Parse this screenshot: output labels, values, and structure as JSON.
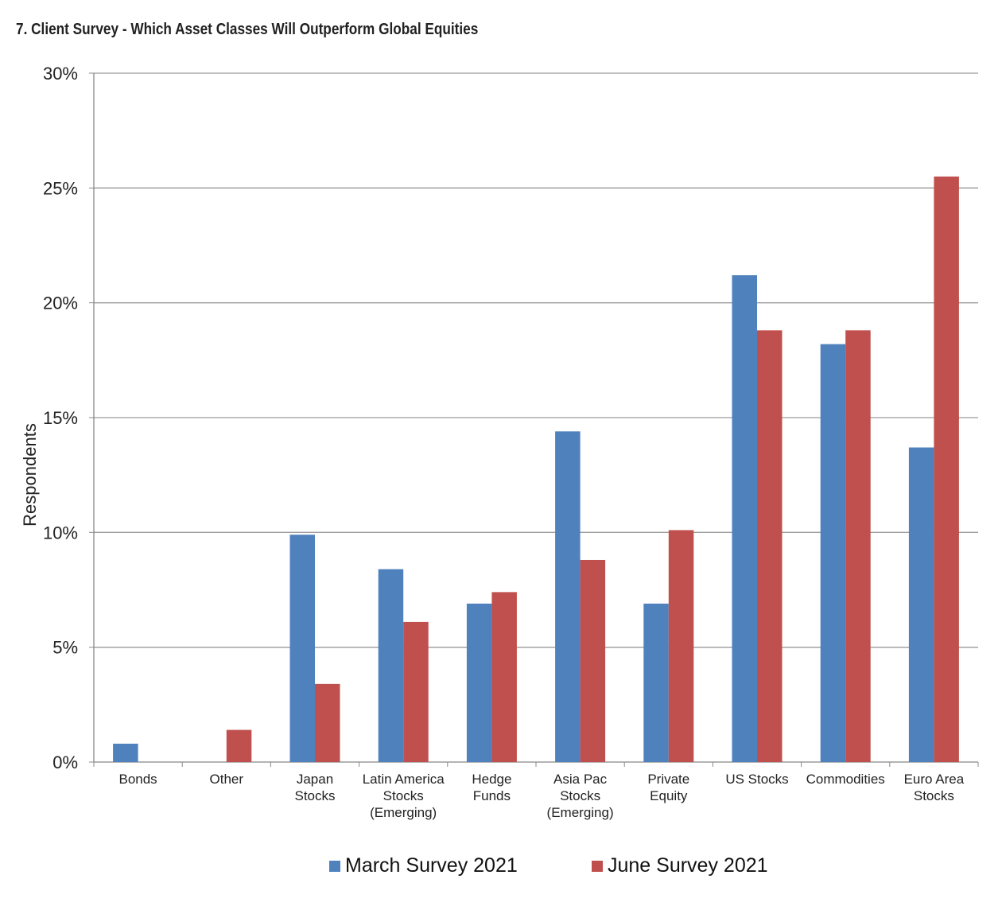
{
  "chart_data": {
    "type": "bar",
    "title": "7. Client Survey - Which Asset Classes Will Outperform Global Equities",
    "ylabel": "Respondents",
    "xlabel": "",
    "ylim": [
      0,
      30
    ],
    "y_ticks": [
      "0%",
      "5%",
      "10%",
      "15%",
      "20%",
      "25%",
      "30%"
    ],
    "y_tick_values": [
      0,
      5,
      10,
      15,
      20,
      25,
      30
    ],
    "grid": true,
    "legend_position": "bottom",
    "categories": [
      [
        "Bonds"
      ],
      [
        "Other"
      ],
      [
        "Japan",
        "Stocks"
      ],
      [
        "Latin America",
        "Stocks",
        "(Emerging)"
      ],
      [
        "Hedge",
        "Funds"
      ],
      [
        "Asia Pac",
        "Stocks",
        "(Emerging)"
      ],
      [
        "Private",
        "Equity"
      ],
      [
        "US Stocks"
      ],
      [
        "Commodities"
      ],
      [
        "Euro Area",
        "Stocks"
      ]
    ],
    "series": [
      {
        "name": "March Survey 2021",
        "color": "#4F81BD",
        "values": [
          0.8,
          0,
          9.9,
          8.4,
          6.9,
          14.4,
          6.9,
          21.2,
          18.2,
          13.7
        ]
      },
      {
        "name": "June Survey 2021",
        "color": "#C0504D",
        "values": [
          0,
          1.4,
          3.4,
          6.1,
          7.4,
          8.8,
          10.1,
          18.8,
          18.8,
          25.5
        ]
      }
    ]
  }
}
